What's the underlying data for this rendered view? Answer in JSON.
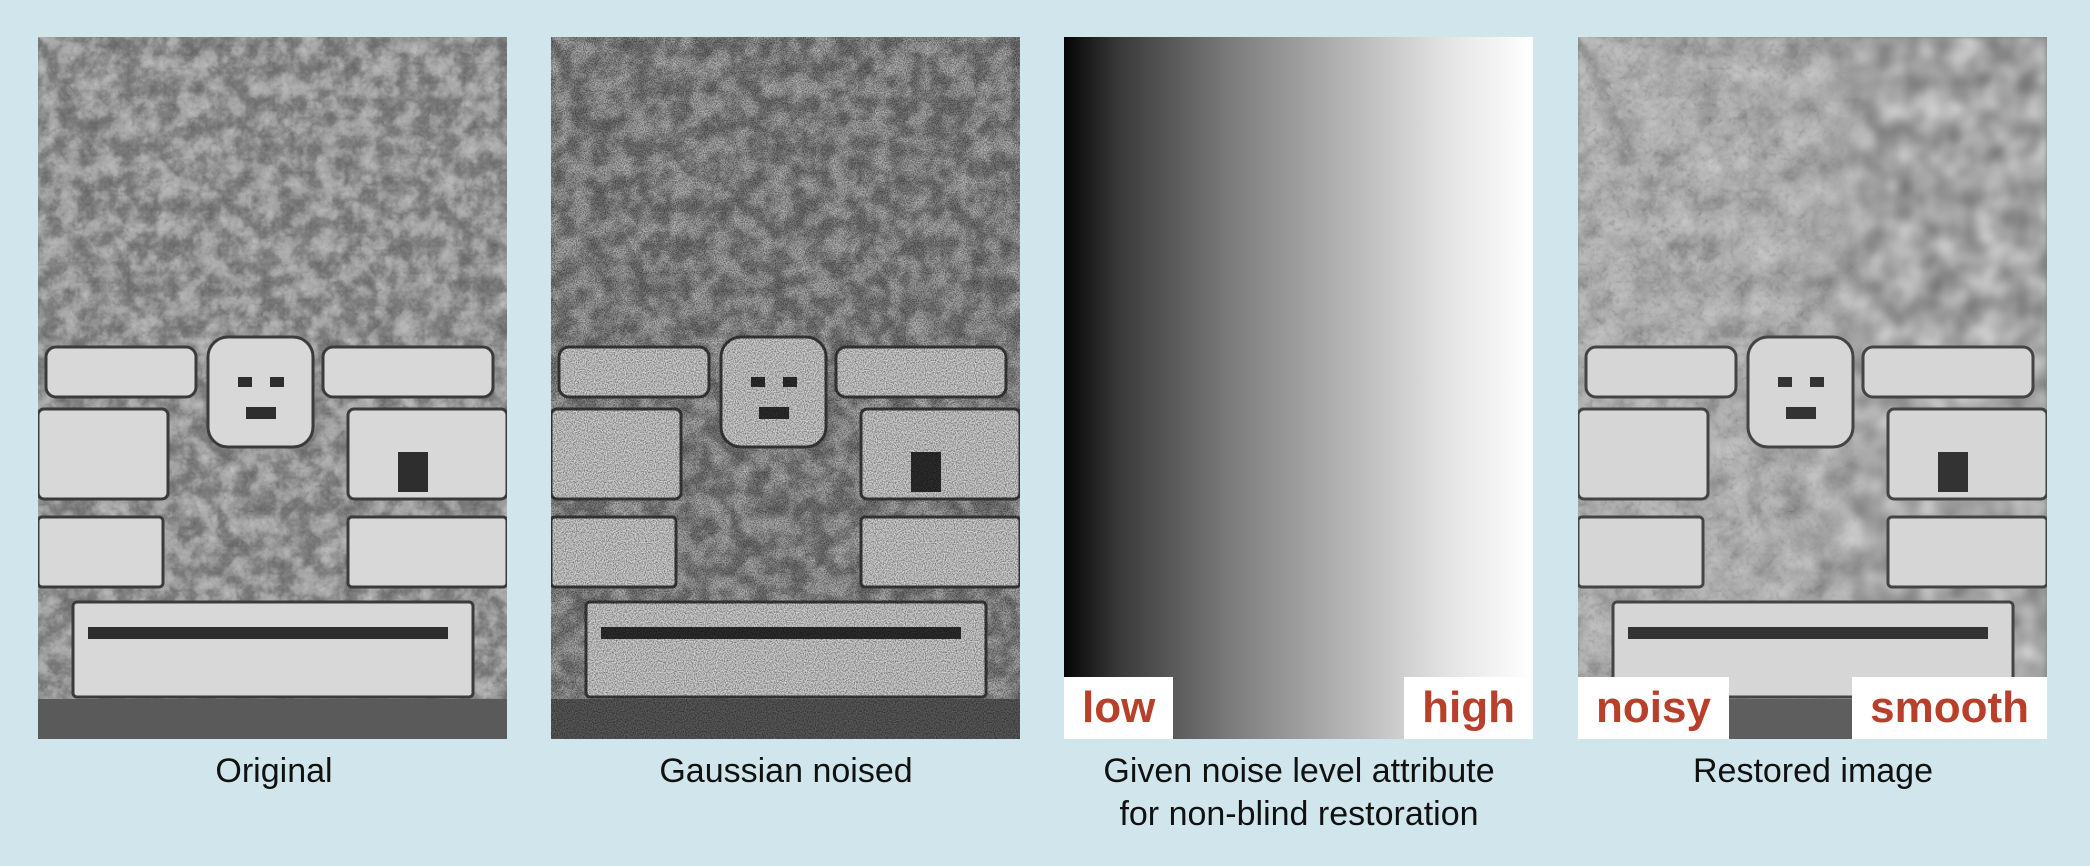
{
  "panels": [
    {
      "caption": "Original"
    },
    {
      "caption": "Gaussian noised"
    },
    {
      "caption_line1": "Given noise level attribute",
      "caption_line2": "for non-blind restoration",
      "tag_left": "low",
      "tag_right": "high"
    },
    {
      "caption": "Restored image",
      "tag_left": "noisy",
      "tag_right": "smooth"
    }
  ],
  "colors": {
    "background": "#d0e6ec",
    "tag_text": "#b8402a"
  }
}
